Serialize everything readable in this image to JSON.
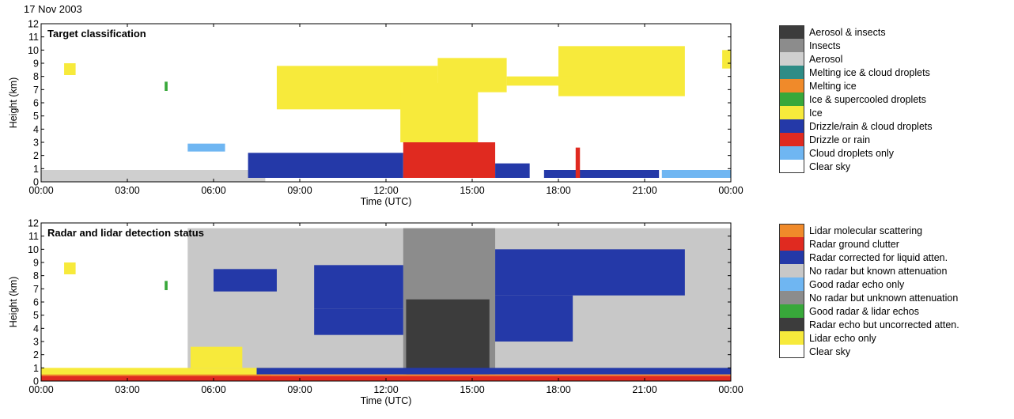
{
  "date_label": "17 Nov 2003",
  "chart_data": [
    {
      "type": "heatmap",
      "title": "Target classification",
      "xlabel": "Time (UTC)",
      "ylabel": "Height (km)",
      "xticks": [
        "00:00",
        "03:00",
        "06:00",
        "09:00",
        "12:00",
        "15:00",
        "18:00",
        "21:00",
        "00:00"
      ],
      "yticks": [
        "0",
        "1",
        "2",
        "3",
        "4",
        "5",
        "6",
        "7",
        "8",
        "9",
        "10",
        "11",
        "12"
      ],
      "xlim_hours": [
        0,
        24
      ],
      "ylim": [
        0,
        12
      ],
      "legend": [
        {
          "label": "Aerosol & insects",
          "color": "#3c3c3c"
        },
        {
          "label": "Insects",
          "color": "#8c8c8c"
        },
        {
          "label": "Aerosol",
          "color": "#cfcfcf"
        },
        {
          "label": "Melting ice & cloud droplets",
          "color": "#2e8c86"
        },
        {
          "label": "Melting ice",
          "color": "#f08a2a"
        },
        {
          "label": "Ice & supercooled droplets",
          "color": "#38a83a"
        },
        {
          "label": "Ice",
          "color": "#f7ea3b"
        },
        {
          "label": "Drizzle/rain & cloud droplets",
          "color": "#2439a8"
        },
        {
          "label": "Drizzle or rain",
          "color": "#e02a20"
        },
        {
          "label": "Cloud droplets only",
          "color": "#6fb6f2"
        },
        {
          "label": "Clear sky",
          "color": "#ffffff"
        }
      ],
      "regions": [
        {
          "class": "Aerosol",
          "color": "#cfcfcf",
          "t": [
            0,
            7.8
          ],
          "h": [
            0,
            0.9
          ]
        },
        {
          "class": "Ice",
          "color": "#f7ea3b",
          "t": [
            0.8,
            1.2
          ],
          "h": [
            8.1,
            9.0
          ]
        },
        {
          "class": "Ice",
          "color": "#f7ea3b",
          "t": [
            8.2,
            13.8
          ],
          "h": [
            5.5,
            8.8
          ]
        },
        {
          "class": "Ice",
          "color": "#f7ea3b",
          "t": [
            12.5,
            15.2
          ],
          "h": [
            3.0,
            7.5
          ]
        },
        {
          "class": "Ice",
          "color": "#f7ea3b",
          "t": [
            13.8,
            16.2
          ],
          "h": [
            6.8,
            9.4
          ]
        },
        {
          "class": "Ice",
          "color": "#f7ea3b",
          "t": [
            18.0,
            22.4
          ],
          "h": [
            6.5,
            10.3
          ]
        },
        {
          "class": "Ice",
          "color": "#f7ea3b",
          "t": [
            16.2,
            18.5
          ],
          "h": [
            7.3,
            8.0
          ]
        },
        {
          "class": "Ice",
          "color": "#f7ea3b",
          "t": [
            23.7,
            24.0
          ],
          "h": [
            8.6,
            10.0
          ]
        },
        {
          "class": "Ice & supercooled droplets",
          "color": "#38a83a",
          "t": [
            4.3,
            4.4
          ],
          "h": [
            6.9,
            7.6
          ]
        },
        {
          "class": "Cloud droplets only",
          "color": "#6fb6f2",
          "t": [
            5.1,
            6.4
          ],
          "h": [
            2.3,
            2.9
          ]
        },
        {
          "class": "Drizzle/rain & cloud droplets",
          "color": "#2439a8",
          "t": [
            7.2,
            12.6
          ],
          "h": [
            0.3,
            2.2
          ]
        },
        {
          "class": "Drizzle or rain",
          "color": "#e02a20",
          "t": [
            12.6,
            15.8
          ],
          "h": [
            0.3,
            3.0
          ]
        },
        {
          "class": "Drizzle/rain & cloud droplets",
          "color": "#2439a8",
          "t": [
            15.8,
            17.0
          ],
          "h": [
            0.3,
            1.4
          ]
        },
        {
          "class": "Drizzle/rain & cloud droplets",
          "color": "#2439a8",
          "t": [
            17.5,
            21.5
          ],
          "h": [
            0.3,
            0.9
          ]
        },
        {
          "class": "Drizzle or rain",
          "color": "#e02a20",
          "t": [
            18.6,
            18.75
          ],
          "h": [
            0.3,
            2.6
          ]
        },
        {
          "class": "Cloud droplets only",
          "color": "#6fb6f2",
          "t": [
            21.6,
            24.0
          ],
          "h": [
            0.3,
            0.9
          ]
        }
      ]
    },
    {
      "type": "heatmap",
      "title": "Radar and lidar detection status",
      "xlabel": "Time (UTC)",
      "ylabel": "Height (km)",
      "xticks": [
        "00:00",
        "03:00",
        "06:00",
        "09:00",
        "12:00",
        "15:00",
        "18:00",
        "21:00",
        "00:00"
      ],
      "yticks": [
        "0",
        "1",
        "2",
        "3",
        "4",
        "5",
        "6",
        "7",
        "8",
        "9",
        "10",
        "11",
        "12"
      ],
      "xlim_hours": [
        0,
        24
      ],
      "ylim": [
        0,
        12
      ],
      "legend": [
        {
          "label": "Lidar molecular scattering",
          "color": "#f08a2a"
        },
        {
          "label": "Radar ground clutter",
          "color": "#e02a20"
        },
        {
          "label": "Radar corrected for liquid atten.",
          "color": "#2439a8"
        },
        {
          "label": "No radar but known attenuation",
          "color": "#c8c8c8"
        },
        {
          "label": "Good radar echo only",
          "color": "#6fb6f2"
        },
        {
          "label": "No radar but unknown attenuation",
          "color": "#8c8c8c"
        },
        {
          "label": "Good radar & lidar echos",
          "color": "#38a83a"
        },
        {
          "label": "Radar echo but uncorrected atten.",
          "color": "#3c3c3c"
        },
        {
          "label": "Lidar echo only",
          "color": "#f7ea3b"
        },
        {
          "label": "Clear sky",
          "color": "#ffffff"
        }
      ],
      "regions": [
        {
          "class": "No radar but known attenuation",
          "color": "#c8c8c8",
          "t": [
            5.1,
            24.0
          ],
          "h": [
            0.5,
            11.6
          ]
        },
        {
          "class": "No radar but unknown attenuation",
          "color": "#8c8c8c",
          "t": [
            12.6,
            15.8
          ],
          "h": [
            0.5,
            11.6
          ]
        },
        {
          "class": "Radar echo but uncorrected atten.",
          "color": "#3c3c3c",
          "t": [
            12.7,
            15.6
          ],
          "h": [
            0.5,
            6.2
          ]
        },
        {
          "class": "Lidar echo only",
          "color": "#f7ea3b",
          "t": [
            0.0,
            8.0
          ],
          "h": [
            0.4,
            1.0
          ]
        },
        {
          "class": "Lidar echo only",
          "color": "#f7ea3b",
          "t": [
            0.8,
            1.2
          ],
          "h": [
            8.1,
            9.0
          ]
        },
        {
          "class": "Lidar echo only",
          "color": "#f7ea3b",
          "t": [
            5.2,
            7.0
          ],
          "h": [
            1.0,
            2.6
          ]
        },
        {
          "class": "Good radar & lidar echos",
          "color": "#38a83a",
          "t": [
            4.3,
            4.4
          ],
          "h": [
            6.9,
            7.6
          ]
        },
        {
          "class": "Radar corrected for liquid atten.",
          "color": "#2439a8",
          "t": [
            6.0,
            8.2
          ],
          "h": [
            6.8,
            8.5
          ]
        },
        {
          "class": "Radar corrected for liquid atten.",
          "color": "#2439a8",
          "t": [
            9.5,
            12.6
          ],
          "h": [
            5.5,
            8.8
          ]
        },
        {
          "class": "Radar corrected for liquid atten.",
          "color": "#2439a8",
          "t": [
            9.5,
            12.6
          ],
          "h": [
            3.5,
            5.5
          ]
        },
        {
          "class": "Radar corrected for liquid atten.",
          "color": "#2439a8",
          "t": [
            15.8,
            22.4
          ],
          "h": [
            6.5,
            10.0
          ]
        },
        {
          "class": "Radar corrected for liquid atten.",
          "color": "#2439a8",
          "t": [
            15.8,
            18.5
          ],
          "h": [
            3.0,
            6.5
          ]
        },
        {
          "class": "Radar corrected for liquid atten.",
          "color": "#2439a8",
          "t": [
            7.5,
            24.0
          ],
          "h": [
            0.5,
            1.0
          ]
        },
        {
          "class": "Radar ground clutter",
          "color": "#e02a20",
          "t": [
            0.0,
            24.0
          ],
          "h": [
            0.0,
            0.4
          ]
        },
        {
          "class": "Lidar molecular scattering",
          "color": "#f08a2a",
          "t": [
            0.0,
            24.0
          ],
          "h": [
            0.4,
            0.5
          ]
        }
      ]
    }
  ]
}
